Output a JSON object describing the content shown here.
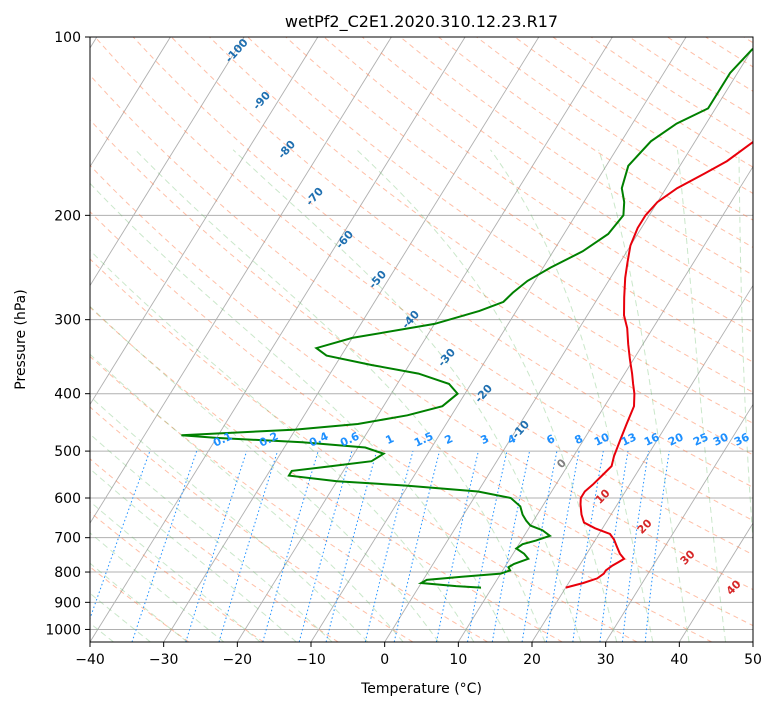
{
  "chart_data": {
    "type": "line",
    "diagram": "skew-T log-P",
    "title": "wetPf2_C2E1.2020.310.12.23.R17",
    "xlabel": "Temperature (°C)",
    "ylabel": "Pressure (hPa)",
    "xlim": [
      -40,
      50
    ],
    "ylim": [
      1050,
      100
    ],
    "y_scale": "log",
    "grid": true,
    "x_ticks": [
      -40,
      -30,
      -20,
      -10,
      0,
      10,
      20,
      30,
      40,
      50
    ],
    "y_ticks": [
      100,
      200,
      300,
      400,
      500,
      600,
      700,
      800,
      900,
      1000
    ],
    "series": [
      {
        "color": "#e8000b",
        "points": [
          [
            20,
            850
          ],
          [
            22,
            835
          ],
          [
            23.5,
            820
          ],
          [
            24,
            805
          ],
          [
            24,
            795
          ],
          [
            24.5,
            780
          ],
          [
            25,
            770
          ],
          [
            25.5,
            760
          ],
          [
            24.5,
            745
          ],
          [
            23.5,
            725
          ],
          [
            22.5,
            705
          ],
          [
            21.5,
            690
          ],
          [
            19,
            675
          ],
          [
            17,
            660
          ],
          [
            16,
            640
          ],
          [
            15,
            615
          ],
          [
            14.5,
            600
          ],
          [
            14.5,
            585
          ],
          [
            15,
            570
          ],
          [
            15.5,
            550
          ],
          [
            16,
            530
          ],
          [
            15.5,
            510
          ],
          [
            15,
            480
          ],
          [
            14.5,
            450
          ],
          [
            14,
            420
          ],
          [
            13,
            400
          ],
          [
            12,
            385
          ],
          [
            11,
            370
          ],
          [
            9.5,
            350
          ],
          [
            8,
            330
          ],
          [
            6.5,
            310
          ],
          [
            5,
            295
          ],
          [
            3.5,
            275
          ],
          [
            2,
            255
          ],
          [
            1,
            240
          ],
          [
            0,
            225
          ],
          [
            -0.5,
            210
          ],
          [
            -0.5,
            200
          ],
          [
            0,
            190
          ],
          [
            1.5,
            180
          ],
          [
            4,
            170
          ],
          [
            6,
            162
          ],
          [
            8,
            150
          ],
          [
            9.5,
            140
          ],
          [
            11,
            130
          ],
          [
            12,
            120
          ],
          [
            13,
            112
          ],
          [
            13.5,
            105
          ],
          [
            14,
            100
          ]
        ]
      },
      {
        "color": "#008000",
        "points": [
          [
            8.5,
            850
          ],
          [
            5,
            845
          ],
          [
            0,
            835
          ],
          [
            0.5,
            825
          ],
          [
            5,
            815
          ],
          [
            10,
            805
          ],
          [
            11,
            795
          ],
          [
            10.5,
            785
          ],
          [
            11,
            775
          ],
          [
            12.5,
            760
          ],
          [
            11.5,
            745
          ],
          [
            10,
            730
          ],
          [
            10.5,
            718
          ],
          [
            12,
            708
          ],
          [
            13.5,
            695
          ],
          [
            12,
            680
          ],
          [
            10,
            668
          ],
          [
            9,
            655
          ],
          [
            8,
            640
          ],
          [
            7,
            620
          ],
          [
            5,
            600
          ],
          [
            0,
            585
          ],
          [
            -10,
            572
          ],
          [
            -20,
            562
          ],
          [
            -27,
            550
          ],
          [
            -27,
            540
          ],
          [
            -22,
            530
          ],
          [
            -17,
            520
          ],
          [
            -16,
            505
          ],
          [
            -19,
            493
          ],
          [
            -28,
            483
          ],
          [
            -40,
            475
          ],
          [
            -45,
            470
          ],
          [
            -30,
            460
          ],
          [
            -22,
            450
          ],
          [
            -16,
            435
          ],
          [
            -12,
            420
          ],
          [
            -11,
            400
          ],
          [
            -13,
            385
          ],
          [
            -18,
            370
          ],
          [
            -25,
            358
          ],
          [
            -32,
            345
          ],
          [
            -34,
            335
          ],
          [
            -30,
            322
          ],
          [
            -20,
            305
          ],
          [
            -15,
            290
          ],
          [
            -12.5,
            280
          ],
          [
            -12,
            270
          ],
          [
            -11,
            258
          ],
          [
            -9,
            245
          ],
          [
            -6,
            230
          ],
          [
            -4,
            215
          ],
          [
            -3.5,
            200
          ],
          [
            -4.5,
            190
          ],
          [
            -6,
            180
          ],
          [
            -7,
            165
          ],
          [
            -6,
            150
          ],
          [
            -4,
            140
          ],
          [
            -1,
            132
          ],
          [
            -1,
            125
          ],
          [
            -1,
            115
          ],
          [
            0,
            105
          ],
          [
            2,
            100
          ]
        ]
      }
    ],
    "dry_adiabat_labels": [
      "-100",
      "-90",
      "-80",
      "-70",
      "-60",
      "-50",
      "-40",
      "-30",
      "-20",
      "-10"
    ],
    "mixing_ratio_labels": [
      "0.1",
      "0.2",
      "0.4",
      "0.6",
      "1",
      "1.5",
      "2",
      "3",
      "4",
      "6",
      "8",
      "10",
      "13",
      "16",
      "20",
      "25",
      "30",
      "36"
    ],
    "moist_adiabat_labels": [
      "0",
      "10",
      "20",
      "30",
      "40"
    ],
    "colors": {
      "isotherm": "#b0b0b0",
      "dry_adiabat": "#ff7f50",
      "moist_adiabat": "#66bb66",
      "mixing_ratio": "#1e90ff",
      "temperature": "#e8000b",
      "dewpoint": "#008000",
      "dry_label": "#1f6fb0",
      "mixing_label": "#1e90ff",
      "moist_label": "#d62728",
      "moist_label_zero": "#808080"
    }
  }
}
